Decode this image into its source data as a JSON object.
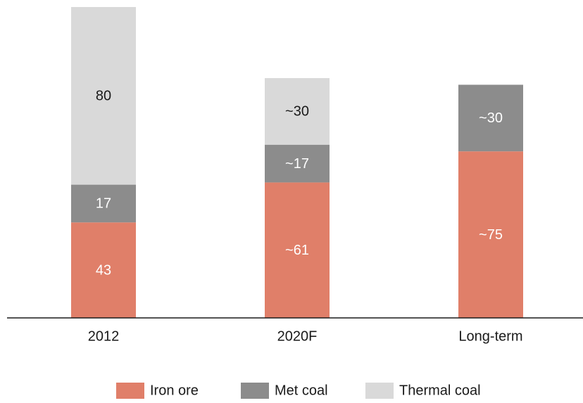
{
  "chart_data": {
    "type": "stacked_bar",
    "categories": [
      "2012",
      "2020F",
      "Long-term"
    ],
    "series": [
      {
        "name": "Iron ore",
        "color": "#e07f69",
        "values": [
          43,
          61,
          75
        ],
        "value_labels": [
          "43",
          "~61",
          "~75"
        ]
      },
      {
        "name": "Met coal",
        "color": "#8c8c8c",
        "values": [
          17,
          17,
          30
        ],
        "value_labels": [
          "17",
          "~17",
          "~30"
        ]
      },
      {
        "name": "Thermal coal",
        "color": "#d9d9d9",
        "values": [
          80,
          30,
          null
        ],
        "value_labels": [
          "80",
          "~30",
          null
        ]
      }
    ]
  }
}
